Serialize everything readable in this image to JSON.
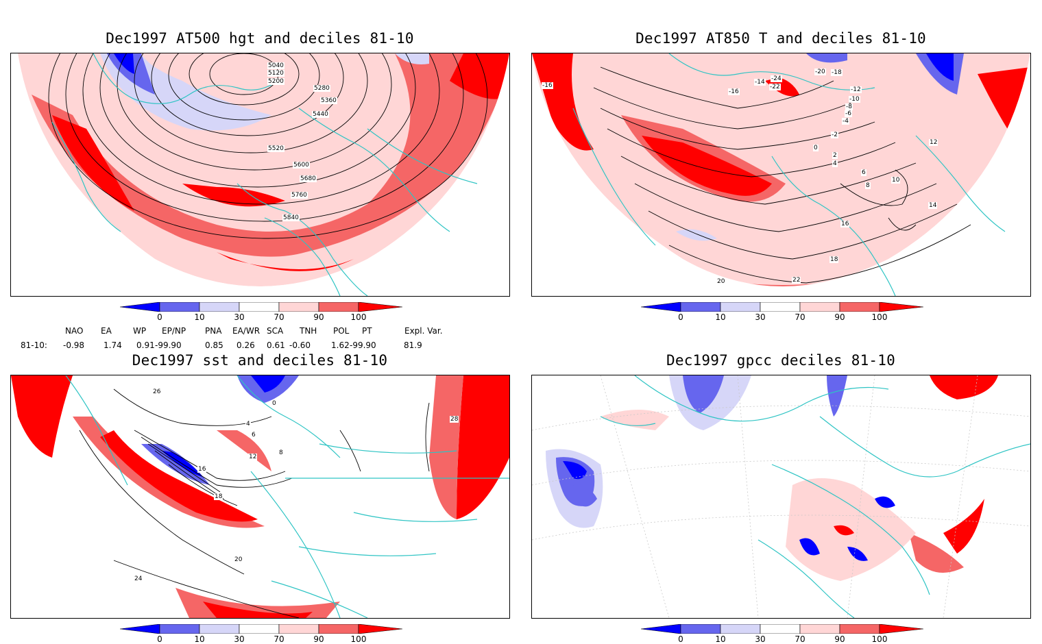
{
  "panels": [
    {
      "title": "Dec1997 AT500 hgt and deciles 81-10",
      "contour_labels": [
        "5040",
        "5120",
        "5200",
        "5280",
        "5360",
        "5440",
        "5520",
        "5600",
        "5680",
        "5760",
        "5840"
      ]
    },
    {
      "title": "Dec1997 AT850 T and deciles 81-10",
      "contour_labels": [
        "-16",
        "-20",
        "-18",
        "-14",
        "-22",
        "-24",
        "-16",
        "-12",
        "-10",
        "-8",
        "-6",
        "-4",
        "-2",
        "0",
        "2",
        "4",
        "6",
        "8",
        "10",
        "12",
        "14",
        "16",
        "18",
        "20",
        "22"
      ]
    },
    {
      "title": "Dec1997 sst and deciles 81-10",
      "contour_labels": [
        "0",
        "4",
        "6",
        "8",
        "12",
        "16",
        "18",
        "20",
        "24",
        "26",
        "28"
      ]
    },
    {
      "title": "Dec1997 gpcc deciles 81-10",
      "contour_labels": []
    }
  ],
  "colorbar": {
    "labels": [
      "0",
      "10",
      "30",
      "70",
      "90",
      "100"
    ],
    "colors": [
      "#0000ff",
      "#6666ee",
      "#d6d6f8",
      "#ffffff",
      "#ffd6d6",
      "#f56666",
      "#ff0000"
    ]
  },
  "teleconnections": {
    "row_label": "81-10:",
    "headers": [
      "NAO",
      "EA",
      "WP",
      "EP/NP",
      "PNA",
      "EA/WR",
      "SCA",
      "TNH",
      "POL",
      "PT",
      "Expl. Var."
    ],
    "values": [
      "-0.98",
      "1.74",
      "0.91",
      "-99.90",
      "0.85",
      "0.26",
      "0.61",
      "-0.60",
      "1.62",
      "-99.90",
      "81.9"
    ]
  },
  "colors": {
    "coast": "#2ec4c4",
    "contour": "#000000",
    "strong_red": "#ff0000",
    "mid_red": "#f56666",
    "light_red": "#ffd6d6",
    "strong_blue": "#0000ff",
    "mid_blue": "#6666ee",
    "light_blue": "#d6d6f8"
  }
}
